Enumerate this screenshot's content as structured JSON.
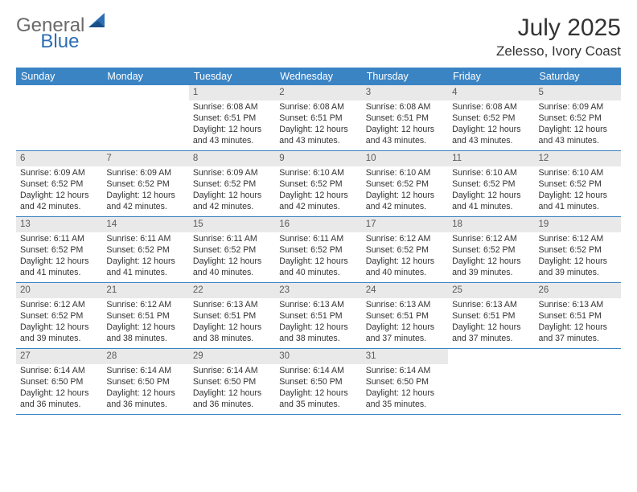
{
  "logo": {
    "word1": "General",
    "word2": "Blue"
  },
  "title": "July 2025",
  "location": "Zelesso, Ivory Coast",
  "weekdays": [
    "Sunday",
    "Monday",
    "Tuesday",
    "Wednesday",
    "Thursday",
    "Friday",
    "Saturday"
  ],
  "colors": {
    "header_bg": "#3b84c4",
    "header_text": "#ffffff",
    "daynum_bg": "#e9e9e9",
    "border": "#3b84c4",
    "logo_gray": "#6a6a6a",
    "logo_blue": "#2d6fb5"
  },
  "weeks": [
    [
      null,
      null,
      {
        "n": "1",
        "sr": "6:08 AM",
        "ss": "6:51 PM",
        "dl": "12 hours and 43 minutes."
      },
      {
        "n": "2",
        "sr": "6:08 AM",
        "ss": "6:51 PM",
        "dl": "12 hours and 43 minutes."
      },
      {
        "n": "3",
        "sr": "6:08 AM",
        "ss": "6:51 PM",
        "dl": "12 hours and 43 minutes."
      },
      {
        "n": "4",
        "sr": "6:08 AM",
        "ss": "6:52 PM",
        "dl": "12 hours and 43 minutes."
      },
      {
        "n": "5",
        "sr": "6:09 AM",
        "ss": "6:52 PM",
        "dl": "12 hours and 43 minutes."
      }
    ],
    [
      {
        "n": "6",
        "sr": "6:09 AM",
        "ss": "6:52 PM",
        "dl": "12 hours and 42 minutes."
      },
      {
        "n": "7",
        "sr": "6:09 AM",
        "ss": "6:52 PM",
        "dl": "12 hours and 42 minutes."
      },
      {
        "n": "8",
        "sr": "6:09 AM",
        "ss": "6:52 PM",
        "dl": "12 hours and 42 minutes."
      },
      {
        "n": "9",
        "sr": "6:10 AM",
        "ss": "6:52 PM",
        "dl": "12 hours and 42 minutes."
      },
      {
        "n": "10",
        "sr": "6:10 AM",
        "ss": "6:52 PM",
        "dl": "12 hours and 42 minutes."
      },
      {
        "n": "11",
        "sr": "6:10 AM",
        "ss": "6:52 PM",
        "dl": "12 hours and 41 minutes."
      },
      {
        "n": "12",
        "sr": "6:10 AM",
        "ss": "6:52 PM",
        "dl": "12 hours and 41 minutes."
      }
    ],
    [
      {
        "n": "13",
        "sr": "6:11 AM",
        "ss": "6:52 PM",
        "dl": "12 hours and 41 minutes."
      },
      {
        "n": "14",
        "sr": "6:11 AM",
        "ss": "6:52 PM",
        "dl": "12 hours and 41 minutes."
      },
      {
        "n": "15",
        "sr": "6:11 AM",
        "ss": "6:52 PM",
        "dl": "12 hours and 40 minutes."
      },
      {
        "n": "16",
        "sr": "6:11 AM",
        "ss": "6:52 PM",
        "dl": "12 hours and 40 minutes."
      },
      {
        "n": "17",
        "sr": "6:12 AM",
        "ss": "6:52 PM",
        "dl": "12 hours and 40 minutes."
      },
      {
        "n": "18",
        "sr": "6:12 AM",
        "ss": "6:52 PM",
        "dl": "12 hours and 39 minutes."
      },
      {
        "n": "19",
        "sr": "6:12 AM",
        "ss": "6:52 PM",
        "dl": "12 hours and 39 minutes."
      }
    ],
    [
      {
        "n": "20",
        "sr": "6:12 AM",
        "ss": "6:52 PM",
        "dl": "12 hours and 39 minutes."
      },
      {
        "n": "21",
        "sr": "6:12 AM",
        "ss": "6:51 PM",
        "dl": "12 hours and 38 minutes."
      },
      {
        "n": "22",
        "sr": "6:13 AM",
        "ss": "6:51 PM",
        "dl": "12 hours and 38 minutes."
      },
      {
        "n": "23",
        "sr": "6:13 AM",
        "ss": "6:51 PM",
        "dl": "12 hours and 38 minutes."
      },
      {
        "n": "24",
        "sr": "6:13 AM",
        "ss": "6:51 PM",
        "dl": "12 hours and 37 minutes."
      },
      {
        "n": "25",
        "sr": "6:13 AM",
        "ss": "6:51 PM",
        "dl": "12 hours and 37 minutes."
      },
      {
        "n": "26",
        "sr": "6:13 AM",
        "ss": "6:51 PM",
        "dl": "12 hours and 37 minutes."
      }
    ],
    [
      {
        "n": "27",
        "sr": "6:14 AM",
        "ss": "6:50 PM",
        "dl": "12 hours and 36 minutes."
      },
      {
        "n": "28",
        "sr": "6:14 AM",
        "ss": "6:50 PM",
        "dl": "12 hours and 36 minutes."
      },
      {
        "n": "29",
        "sr": "6:14 AM",
        "ss": "6:50 PM",
        "dl": "12 hours and 36 minutes."
      },
      {
        "n": "30",
        "sr": "6:14 AM",
        "ss": "6:50 PM",
        "dl": "12 hours and 35 minutes."
      },
      {
        "n": "31",
        "sr": "6:14 AM",
        "ss": "6:50 PM",
        "dl": "12 hours and 35 minutes."
      },
      null,
      null
    ]
  ],
  "labels": {
    "sunrise": "Sunrise:",
    "sunset": "Sunset:",
    "daylight": "Daylight:"
  }
}
